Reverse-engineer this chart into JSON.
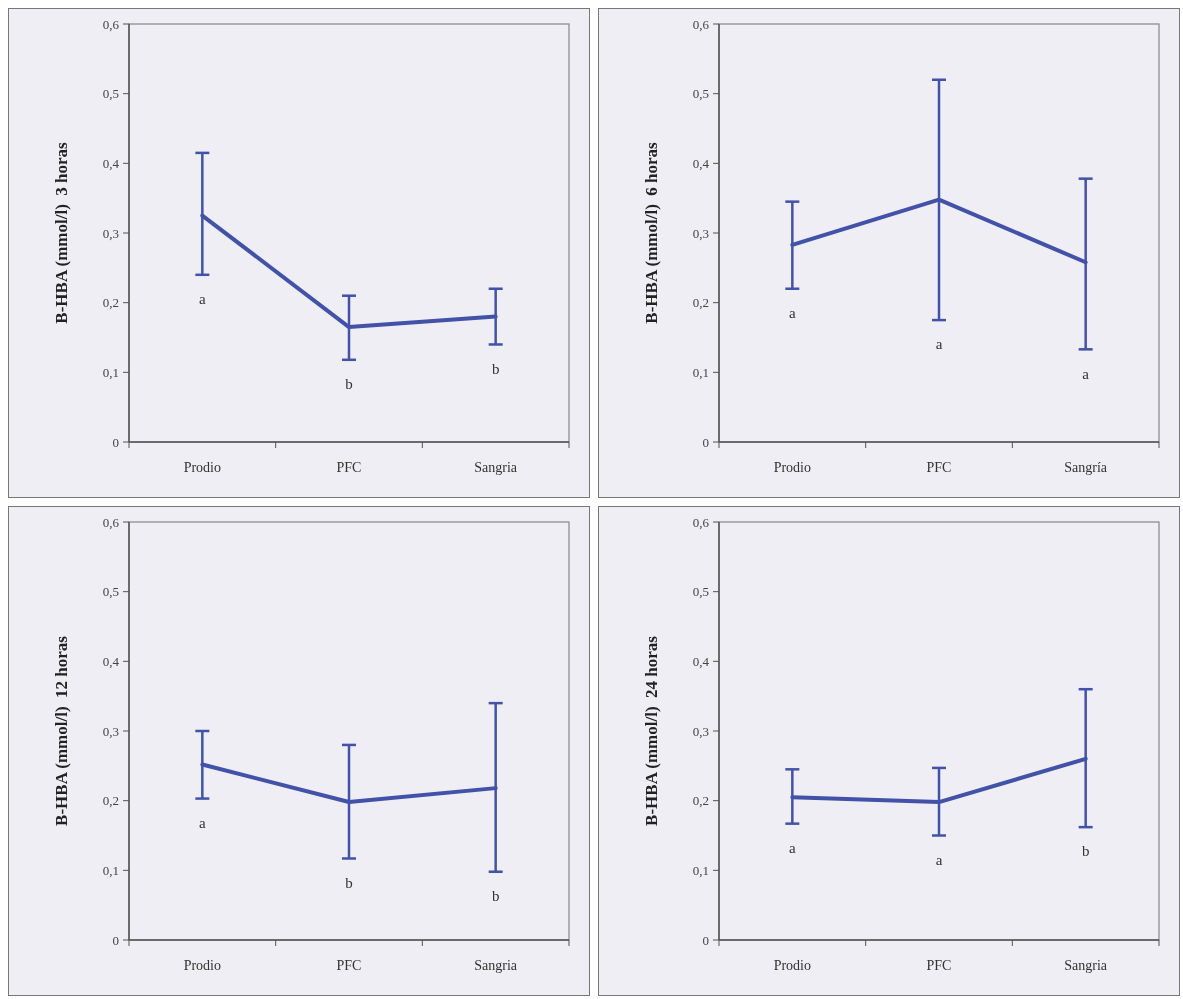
{
  "chart_data": [
    {
      "type": "line",
      "ylabel": "B-HBA (mmol/l)  3 horas",
      "categories": [
        "Prodio",
        "PFC",
        "Sangria"
      ],
      "ylim": [
        0,
        0.6
      ],
      "yticks": [
        {
          "value": 0,
          "label": "0"
        },
        {
          "value": 0.1,
          "label": "0,1"
        },
        {
          "value": 0.2,
          "label": "0,2"
        },
        {
          "value": 0.3,
          "label": "0,3"
        },
        {
          "value": 0.4,
          "label": "0,4"
        },
        {
          "value": 0.5,
          "label": "0,5"
        },
        {
          "value": 0.6,
          "label": "0,6"
        }
      ],
      "marker": "none",
      "line_style": "solid",
      "series": [
        {
          "color": "#4252a8",
          "values": [
            0.325,
            0.165,
            0.18
          ],
          "errors": [
            [
              0.24,
              0.415
            ],
            [
              0.118,
              0.21
            ],
            [
              0.14,
              0.22
            ]
          ]
        }
      ],
      "annotations": [
        "a",
        "b",
        "b"
      ]
    },
    {
      "type": "line",
      "ylabel": "B-HBA (mmol/l)  6 horas",
      "categories": [
        "Prodio",
        "PFC",
        "Sangría"
      ],
      "ylim": [
        0,
        0.6
      ],
      "yticks": [
        {
          "value": 0,
          "label": "0"
        },
        {
          "value": 0.1,
          "label": "0,1"
        },
        {
          "value": 0.2,
          "label": "0,2"
        },
        {
          "value": 0.3,
          "label": "0,3"
        },
        {
          "value": 0.4,
          "label": "0,4"
        },
        {
          "value": 0.5,
          "label": "0,5"
        },
        {
          "value": 0.6,
          "label": "0,6"
        }
      ],
      "marker": "none",
      "line_style": "solid",
      "series": [
        {
          "color": "#4252a8",
          "values": [
            0.283,
            0.348,
            0.258
          ],
          "errors": [
            [
              0.22,
              0.345
            ],
            [
              0.175,
              0.52
            ],
            [
              0.133,
              0.378
            ]
          ]
        }
      ],
      "annotations": [
        "a",
        "a",
        "a"
      ]
    },
    {
      "type": "line",
      "ylabel": "B-HBA (mmol/l)  12 horas",
      "categories": [
        "Prodio",
        "PFC",
        "Sangria"
      ],
      "ylim": [
        0,
        0.6
      ],
      "yticks": [
        {
          "value": 0,
          "label": "0"
        },
        {
          "value": 0.1,
          "label": "0,1"
        },
        {
          "value": 0.2,
          "label": "0,2"
        },
        {
          "value": 0.3,
          "label": "0,3"
        },
        {
          "value": 0.4,
          "label": "0,4"
        },
        {
          "value": 0.5,
          "label": "0,5"
        },
        {
          "value": 0.6,
          "label": "0,6"
        }
      ],
      "marker": "none",
      "line_style": "solid",
      "series": [
        {
          "color": "#4252a8",
          "values": [
            0.252,
            0.198,
            0.218
          ],
          "errors": [
            [
              0.203,
              0.3
            ],
            [
              0.117,
              0.28
            ],
            [
              0.098,
              0.34
            ]
          ]
        }
      ],
      "annotations": [
        "a",
        "b",
        "b"
      ]
    },
    {
      "type": "line",
      "ylabel": "B-HBA (mmol/l)  24 horas",
      "categories": [
        "Prodio",
        "PFC",
        "Sangria"
      ],
      "ylim": [
        0,
        0.6
      ],
      "yticks": [
        {
          "value": 0,
          "label": "0"
        },
        {
          "value": 0.1,
          "label": "0,1"
        },
        {
          "value": 0.2,
          "label": "0,2"
        },
        {
          "value": 0.3,
          "label": "0,3"
        },
        {
          "value": 0.4,
          "label": "0,4"
        },
        {
          "value": 0.5,
          "label": "0,5"
        },
        {
          "value": 0.6,
          "label": "0,6"
        }
      ],
      "marker": "none",
      "line_style": "solid",
      "series": [
        {
          "color": "#4252a8",
          "values": [
            0.205,
            0.198,
            0.26
          ],
          "errors": [
            [
              0.167,
              0.245
            ],
            [
              0.15,
              0.247
            ],
            [
              0.162,
              0.36
            ]
          ]
        }
      ],
      "annotations": [
        "a",
        "a",
        "b"
      ]
    }
  ]
}
